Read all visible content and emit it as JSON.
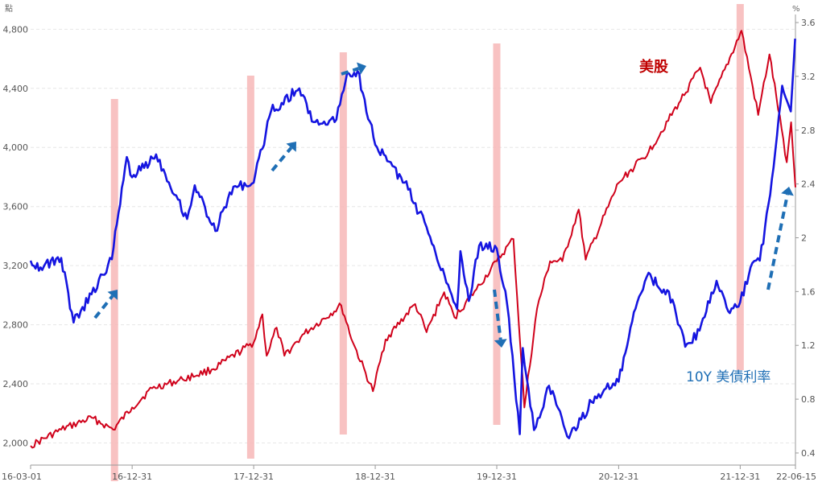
{
  "chart_data": {
    "type": "line",
    "x_ticks": [
      "16-03-01",
      "16-12-31",
      "17-12-31",
      "18-12-31",
      "19-12-31",
      "20-12-31",
      "21-12-31",
      "22-06-15"
    ],
    "left_axis": {
      "unit": "點",
      "ticks": [
        "4,800",
        "4,400",
        "4,000",
        "3,600",
        "3,200",
        "2,800",
        "2,400",
        "2,000"
      ],
      "tick_values": [
        4800,
        4400,
        4000,
        3600,
        3200,
        2800,
        2400,
        2000
      ],
      "ylim": [
        1850,
        4900
      ]
    },
    "right_axis": {
      "unit": "%",
      "ticks": [
        "3.6",
        "3.2",
        "2.8",
        "2.4",
        "2",
        "1.6",
        "1.2",
        "0.8",
        "0.4"
      ],
      "tick_values": [
        3.6,
        3.2,
        2.8,
        2.4,
        2.0,
        1.6,
        1.2,
        0.8,
        0.4
      ],
      "ylim": [
        0.31,
        3.66
      ]
    },
    "series": [
      {
        "name": "美股",
        "axis": "left",
        "color": "#d0021b",
        "points": [
          [
            "2016-03-01",
            1980
          ],
          [
            "2016-06-01",
            2090
          ],
          [
            "2016-09-01",
            2170
          ],
          [
            "2016-11-04",
            2090
          ],
          [
            "2016-12-31",
            2240
          ],
          [
            "2017-03-01",
            2370
          ],
          [
            "2017-06-01",
            2430
          ],
          [
            "2017-09-01",
            2500
          ],
          [
            "2017-12-31",
            2680
          ],
          [
            "2018-01-26",
            2870
          ],
          [
            "2018-02-08",
            2590
          ],
          [
            "2018-03-10",
            2780
          ],
          [
            "2018-04-02",
            2590
          ],
          [
            "2018-06-01",
            2740
          ],
          [
            "2018-09-20",
            2930
          ],
          [
            "2018-10-25",
            2680
          ],
          [
            "2018-12-24",
            2350
          ],
          [
            "2019-01-31",
            2700
          ],
          [
            "2019-04-30",
            2940
          ],
          [
            "2019-06-03",
            2750
          ],
          [
            "2019-07-26",
            3020
          ],
          [
            "2019-08-26",
            2850
          ],
          [
            "2019-10-31",
            3040
          ],
          [
            "2019-12-31",
            3230
          ],
          [
            "2020-02-19",
            3380
          ],
          [
            "2020-03-23",
            2240
          ],
          [
            "2020-04-30",
            2910
          ],
          [
            "2020-06-08",
            3230
          ],
          [
            "2020-07-15",
            3230
          ],
          [
            "2020-09-02",
            3580
          ],
          [
            "2020-09-23",
            3240
          ],
          [
            "2020-12-31",
            3760
          ],
          [
            "2021-03-31",
            3970
          ],
          [
            "2021-06-30",
            4300
          ],
          [
            "2021-09-02",
            4540
          ],
          [
            "2021-10-04",
            4300
          ],
          [
            "2021-12-31",
            4770
          ],
          [
            "2022-01-04",
            4790
          ],
          [
            "2022-02-23",
            4220
          ],
          [
            "2022-03-29",
            4630
          ],
          [
            "2022-05-20",
            3900
          ],
          [
            "2022-06-02",
            4170
          ],
          [
            "2022-06-15",
            3730
          ]
        ]
      },
      {
        "name": "10Y 美債利率",
        "axis": "right",
        "color": "#1515e0",
        "points": [
          [
            "2016-03-01",
            1.83
          ],
          [
            "2016-03-31",
            1.78
          ],
          [
            "2016-06-01",
            1.85
          ],
          [
            "2016-07-08",
            1.37
          ],
          [
            "2016-08-31",
            1.58
          ],
          [
            "2016-10-31",
            1.84
          ],
          [
            "2016-11-30",
            2.37
          ],
          [
            "2016-12-15",
            2.6
          ],
          [
            "2016-12-31",
            2.45
          ],
          [
            "2017-03-13",
            2.62
          ],
          [
            "2017-06-14",
            2.14
          ],
          [
            "2017-07-07",
            2.39
          ],
          [
            "2017-09-07",
            2.05
          ],
          [
            "2017-10-31",
            2.38
          ],
          [
            "2017-12-31",
            2.41
          ],
          [
            "2018-02-21",
            2.94
          ],
          [
            "2018-05-17",
            3.11
          ],
          [
            "2018-06-29",
            2.86
          ],
          [
            "2018-08-31",
            2.86
          ],
          [
            "2018-10-08",
            3.23
          ],
          [
            "2018-11-08",
            3.24
          ],
          [
            "2018-12-31",
            2.69
          ],
          [
            "2019-03-29",
            2.41
          ],
          [
            "2019-06-03",
            2.08
          ],
          [
            "2019-09-03",
            1.47
          ],
          [
            "2019-09-13",
            1.9
          ],
          [
            "2019-10-08",
            1.53
          ],
          [
            "2019-11-08",
            1.94
          ],
          [
            "2019-12-31",
            1.92
          ],
          [
            "2020-01-31",
            1.51
          ],
          [
            "2020-03-09",
            0.54
          ],
          [
            "2020-03-18",
            1.18
          ],
          [
            "2020-04-21",
            0.57
          ],
          [
            "2020-06-05",
            0.9
          ],
          [
            "2020-08-04",
            0.51
          ],
          [
            "2020-10-21",
            0.82
          ],
          [
            "2020-12-31",
            0.93
          ],
          [
            "2021-02-25",
            1.52
          ],
          [
            "2021-03-31",
            1.74
          ],
          [
            "2021-04-30",
            1.63
          ],
          [
            "2021-05-31",
            1.6
          ],
          [
            "2021-07-19",
            1.19
          ],
          [
            "2021-08-31",
            1.31
          ],
          [
            "2021-10-21",
            1.68
          ],
          [
            "2021-11-30",
            1.44
          ],
          [
            "2021-12-31",
            1.52
          ],
          [
            "2022-01-31",
            1.78
          ],
          [
            "2022-02-28",
            1.83
          ],
          [
            "2022-03-31",
            2.32
          ],
          [
            "2022-05-06",
            3.13
          ],
          [
            "2022-06-01",
            2.94
          ],
          [
            "2022-06-14",
            3.48
          ]
        ]
      }
    ],
    "annotations": [
      {
        "text": "美股",
        "color": "#c00000"
      },
      {
        "text": "10Y 美債利率",
        "color": "#1f6fb5"
      }
    ],
    "highlight_bands": [
      "2016-11-08",
      "2017-12-22",
      "2018-09-26",
      "2019-12-31",
      "2021-12-31"
    ],
    "arrow_color": "#1f6fb5",
    "band_color": "#f7b7b7",
    "grid": "horizontal dashed"
  }
}
